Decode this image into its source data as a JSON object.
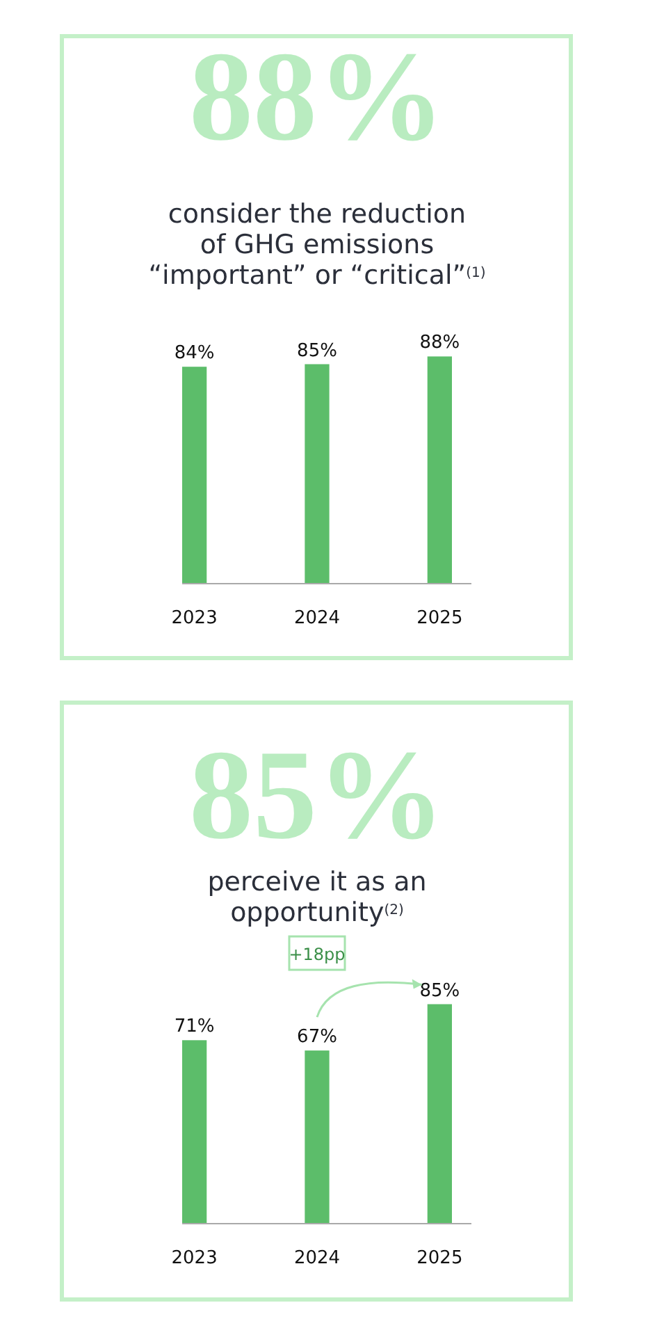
{
  "chart_data": [
    {
      "type": "bar",
      "title": "88%",
      "subtitle": "consider the reduction\nof GHG emissions\n“important” or “critical”$^{(1)}$",
      "categories": [
        "2023",
        "2024",
        "2025"
      ],
      "values": [
        84,
        85,
        88
      ],
      "color": "#5cbd6a",
      "data_labels": true,
      "value_labels": [
        "84%",
        "85%",
        "88%"
      ]
    },
    {
      "type": "bar",
      "title": "85%",
      "subtitle": "perceive it as an\nopportunity$^{(2)}$",
      "categories": [
        "2023",
        "2024",
        "2025"
      ],
      "values": [
        71,
        67,
        85
      ],
      "color": "#5cbd6a",
      "data_labels": true,
      "value_labels": [
        "71%",
        "67%",
        "85%"
      ],
      "annotations": [
        "+18pp"
      ]
    }
  ]
}
